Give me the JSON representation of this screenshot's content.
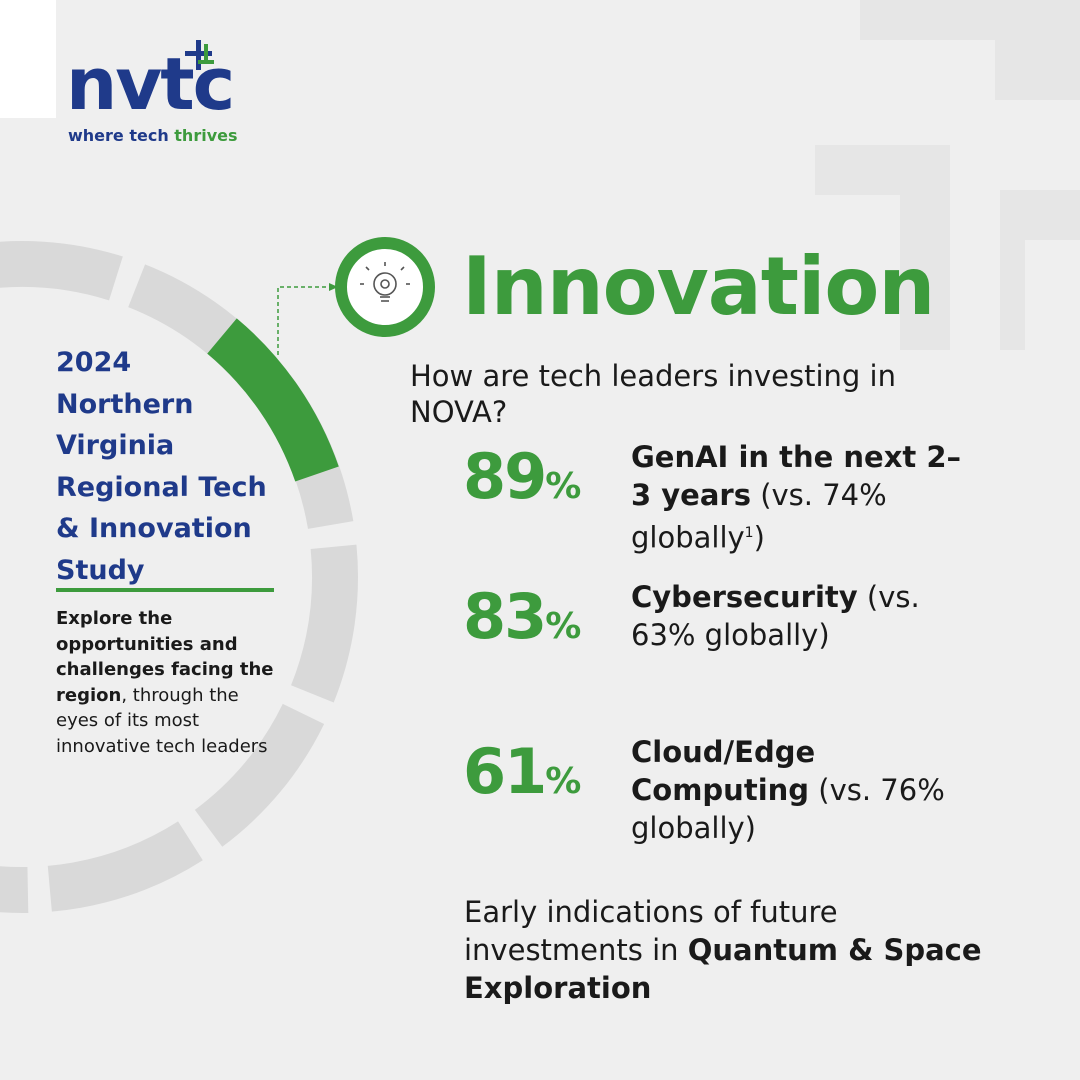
{
  "logo": {
    "wordmark": "nvtc",
    "tagline_plain": "where tech ",
    "tagline_accent": "thrives"
  },
  "study": {
    "title_lines": [
      "2024",
      "Northern",
      "Virginia",
      "Regional Tech",
      "& Innovation",
      "Study"
    ],
    "description_bold": "Explore the opportunities and challenges facing the region",
    "description_rest": ", through the eyes of its most innovative tech leaders"
  },
  "section": {
    "heading": "Innovation",
    "question": "How are tech leaders investing in NOVA?"
  },
  "stats": [
    {
      "value": "89",
      "unit": "%",
      "bold": "GenAI in the next 2–3 years",
      "rest": " (vs. 74% globally",
      "footnote": "1",
      "end": ")"
    },
    {
      "value": "83",
      "unit": "%",
      "bold": "Cybersecurity",
      "rest": " (vs. 63% globally)"
    },
    {
      "value": "61",
      "unit": "%",
      "bold": "Cloud/Edge Computing",
      "rest": " (vs. 76% globally)"
    }
  ],
  "footer": {
    "plain": "Early indications of future investments in ",
    "bold": "Quantum & Space Exploration"
  }
}
